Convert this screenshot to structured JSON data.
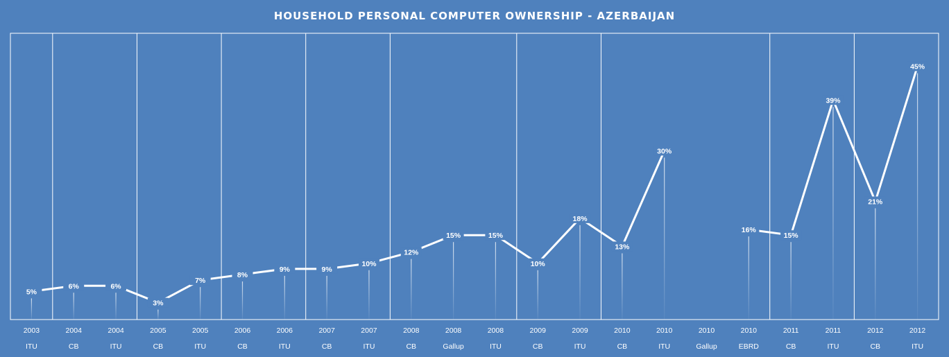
{
  "chart_data": {
    "type": "line",
    "title": "HOUSEHOLD PERSONAL COMPUTER OWNERSHIP - AZERBAIJAN",
    "xlabel": "",
    "ylabel": "",
    "ylim": [
      0,
      50
    ],
    "grid": false,
    "legend": "none",
    "colors": {
      "background": "#4f81bd",
      "line": "#ffffff"
    },
    "categories": [
      {
        "year": "2003",
        "source": "ITU"
      },
      {
        "year": "2004",
        "source": "CB"
      },
      {
        "year": "2004",
        "source": "ITU"
      },
      {
        "year": "2005",
        "source": "CB"
      },
      {
        "year": "2005",
        "source": "ITU"
      },
      {
        "year": "2006",
        "source": "CB"
      },
      {
        "year": "2006",
        "source": "ITU"
      },
      {
        "year": "2007",
        "source": "CB"
      },
      {
        "year": "2007",
        "source": "ITU"
      },
      {
        "year": "2008",
        "source": "CB"
      },
      {
        "year": "2008",
        "source": "Gallup"
      },
      {
        "year": "2008",
        "source": "ITU"
      },
      {
        "year": "2009",
        "source": "CB"
      },
      {
        "year": "2009",
        "source": "ITU"
      },
      {
        "year": "2010",
        "source": "CB"
      },
      {
        "year": "2010",
        "source": "ITU"
      },
      {
        "year": "2010",
        "source": "Gallup"
      },
      {
        "year": "2010",
        "source": "EBRD"
      },
      {
        "year": "2011",
        "source": "CB"
      },
      {
        "year": "2011",
        "source": "ITU"
      },
      {
        "year": "2012",
        "source": "CB"
      },
      {
        "year": "2012",
        "source": "ITU"
      }
    ],
    "values": [
      5,
      6,
      6,
      3,
      7,
      8,
      9,
      9,
      10,
      12,
      15,
      15,
      10,
      18,
      13,
      30,
      null,
      16,
      15,
      39,
      21,
      45
    ],
    "value_labels": [
      "5%",
      "6%",
      "6%",
      "3%",
      "7%",
      "8%",
      "9%",
      "9%",
      "10%",
      "12%",
      "15%",
      "15%",
      "10%",
      "18%",
      "13%",
      "30%",
      "",
      "16%",
      "15%",
      "39%",
      "21%",
      "45%"
    ]
  }
}
